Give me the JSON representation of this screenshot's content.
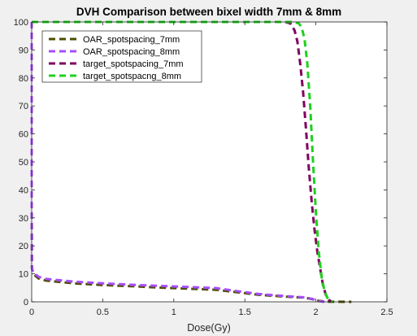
{
  "chart_data": {
    "type": "line",
    "title": "DVH Comparison between bixel width 7mm & 8mm",
    "xlabel": "Dose(Gy)",
    "ylabel": "",
    "xlim": [
      0,
      2.5
    ],
    "ylim": [
      0,
      100
    ],
    "xticks": [
      "0",
      "0.5",
      "1",
      "1.5",
      "2",
      "2.5"
    ],
    "yticks": [
      "0",
      "10",
      "20",
      "30",
      "40",
      "50",
      "60",
      "70",
      "80",
      "90",
      "100"
    ],
    "grid": false,
    "legend_position": "top-left",
    "series": [
      {
        "name": "OAR_spotspacing_7mm",
        "color": "#4d4d00",
        "style": "dashed",
        "points": [
          [
            0,
            100
          ],
          [
            0,
            35
          ],
          [
            0.002,
            12
          ],
          [
            0.01,
            10
          ],
          [
            0.05,
            8.3
          ],
          [
            0.1,
            7.6
          ],
          [
            0.2,
            7.1
          ],
          [
            0.3,
            6.6
          ],
          [
            0.5,
            6.0
          ],
          [
            0.7,
            5.6
          ],
          [
            0.9,
            5.1
          ],
          [
            1.1,
            4.7
          ],
          [
            1.3,
            4.3
          ],
          [
            1.45,
            3.4
          ],
          [
            1.6,
            2.5
          ],
          [
            1.8,
            1.8
          ],
          [
            1.92,
            1.5
          ],
          [
            1.97,
            1.0
          ],
          [
            2.0,
            0.5
          ],
          [
            2.05,
            0.2
          ],
          [
            2.1,
            0.05
          ],
          [
            2.25,
            0
          ]
        ]
      },
      {
        "name": "OAR_spotspacing_8mm",
        "color": "#a64dff",
        "style": "dashed",
        "points": [
          [
            0,
            100
          ],
          [
            0,
            35
          ],
          [
            0.002,
            12
          ],
          [
            0.01,
            10.5
          ],
          [
            0.05,
            8.9
          ],
          [
            0.1,
            8.2
          ],
          [
            0.2,
            7.7
          ],
          [
            0.3,
            7.2
          ],
          [
            0.5,
            6.6
          ],
          [
            0.7,
            6.1
          ],
          [
            0.9,
            5.7
          ],
          [
            1.1,
            5.3
          ],
          [
            1.3,
            4.9
          ],
          [
            1.45,
            3.8
          ],
          [
            1.6,
            2.8
          ],
          [
            1.8,
            2.0
          ],
          [
            1.92,
            1.6
          ],
          [
            1.97,
            1.1
          ],
          [
            2.0,
            0.6
          ],
          [
            2.03,
            0.2
          ],
          [
            2.06,
            0
          ]
        ]
      },
      {
        "name": "target_spotspacing_7mm",
        "color": "#800060",
        "style": "dashed",
        "points": [
          [
            0,
            100
          ],
          [
            1.78,
            100
          ],
          [
            1.82,
            99.5
          ],
          [
            1.85,
            97
          ],
          [
            1.87,
            93
          ],
          [
            1.89,
            85
          ],
          [
            1.91,
            75
          ],
          [
            1.93,
            62
          ],
          [
            1.95,
            48
          ],
          [
            1.97,
            36
          ],
          [
            1.99,
            26
          ],
          [
            2.01,
            18
          ],
          [
            2.03,
            12
          ],
          [
            2.05,
            6
          ],
          [
            2.07,
            2.5
          ],
          [
            2.09,
            0.8
          ],
          [
            2.11,
            0
          ]
        ]
      },
      {
        "name": "target_spotspacng_8mm",
        "color": "#1ed01e",
        "style": "dashed",
        "points": [
          [
            0,
            100
          ],
          [
            1.84,
            100
          ],
          [
            1.88,
            99.5
          ],
          [
            1.9,
            98
          ],
          [
            1.92,
            94
          ],
          [
            1.94,
            85
          ],
          [
            1.96,
            70
          ],
          [
            1.98,
            50
          ],
          [
            2.0,
            32
          ],
          [
            2.02,
            18
          ],
          [
            2.04,
            9
          ],
          [
            2.06,
            4
          ],
          [
            2.08,
            1.5
          ],
          [
            2.1,
            0.3
          ],
          [
            2.12,
            0
          ]
        ]
      }
    ]
  }
}
